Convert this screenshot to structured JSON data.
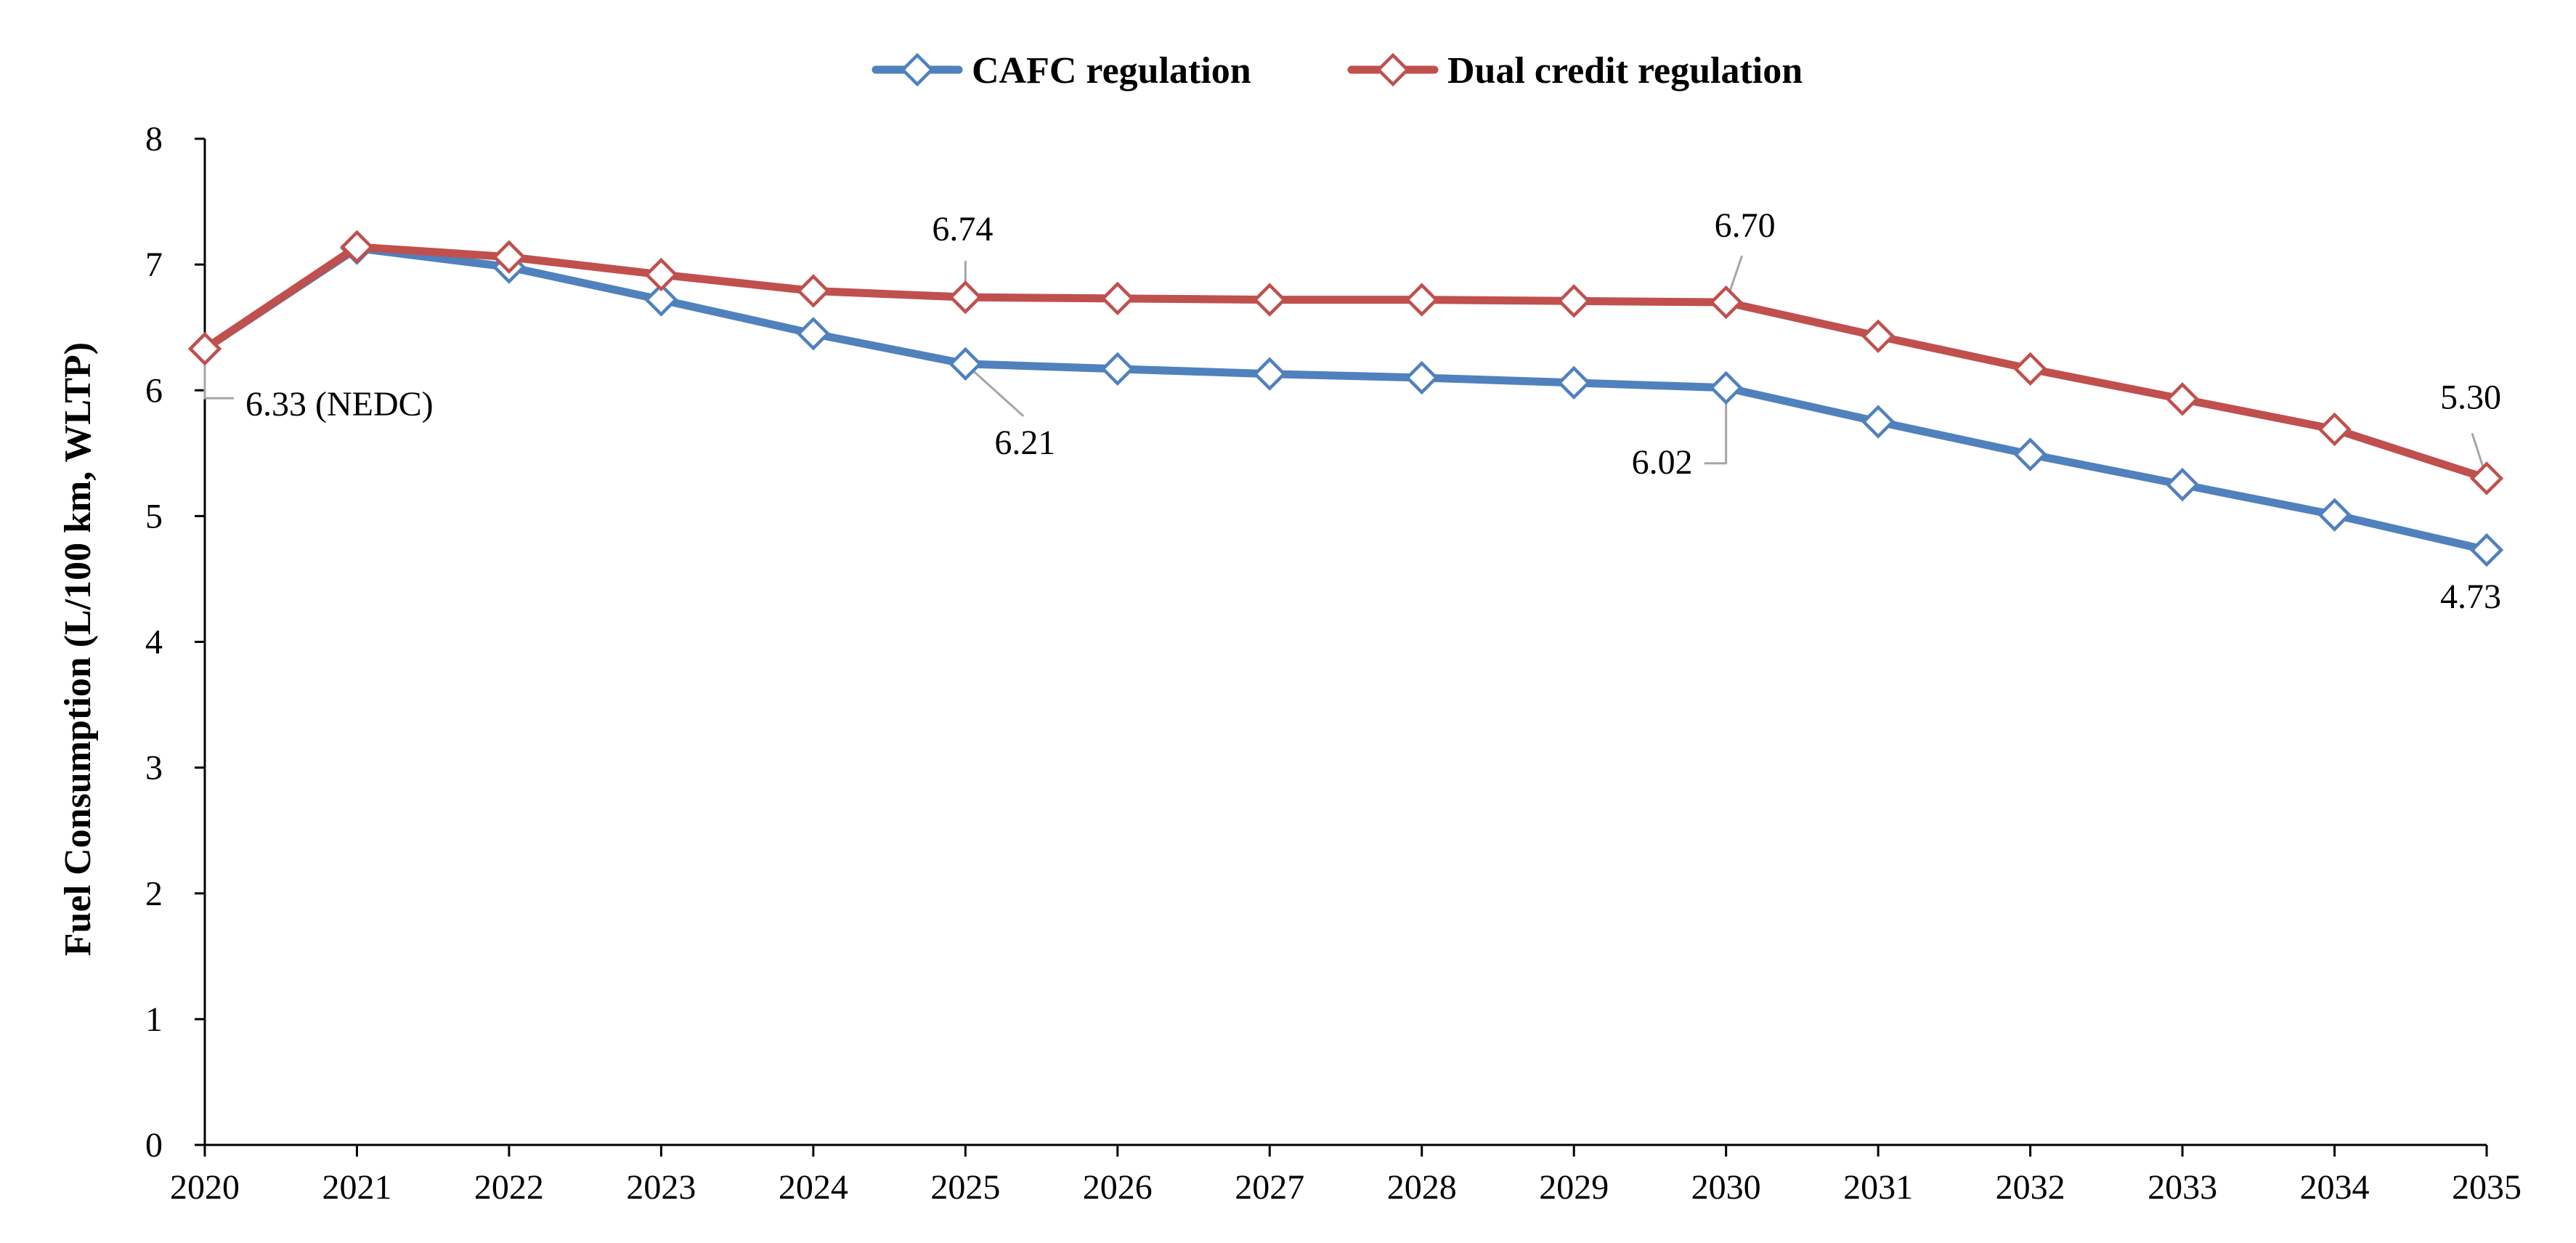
{
  "chart_data": {
    "type": "line",
    "title": "",
    "xlabel": "",
    "ylabel": "Fuel Consumption (L/100 km, WLTP)",
    "categories": [
      "2020",
      "2021",
      "2022",
      "2023",
      "2024",
      "2025",
      "2026",
      "2027",
      "2028",
      "2029",
      "2030",
      "2031",
      "2032",
      "2033",
      "2034",
      "2035"
    ],
    "ylim": [
      0,
      8
    ],
    "yticks": [
      0,
      1,
      2,
      3,
      4,
      5,
      6,
      7,
      8
    ],
    "grid": false,
    "legend_position": "top-center",
    "series": [
      {
        "name": "CAFC regulation",
        "color": "#4F81BD",
        "marker": "diamond-open",
        "values": [
          6.33,
          7.13,
          6.98,
          6.72,
          6.45,
          6.21,
          6.17,
          6.13,
          6.1,
          6.06,
          6.02,
          5.75,
          5.49,
          5.25,
          5.01,
          4.73
        ]
      },
      {
        "name": "Dual credit regulation",
        "color": "#C0504D",
        "marker": "diamond-open",
        "values": [
          6.33,
          7.14,
          7.06,
          6.92,
          6.79,
          6.74,
          6.73,
          6.72,
          6.72,
          6.71,
          6.7,
          6.43,
          6.17,
          5.93,
          5.69,
          5.3
        ]
      }
    ],
    "annotations": [
      {
        "text": "6.33 (NEDC)",
        "series": 1,
        "index": 0
      },
      {
        "text": "6.74",
        "series": 1,
        "index": 5
      },
      {
        "text": "6.21",
        "series": 0,
        "index": 5
      },
      {
        "text": "6.70",
        "series": 1,
        "index": 10
      },
      {
        "text": "6.02",
        "series": 0,
        "index": 10
      },
      {
        "text": "5.30",
        "series": 1,
        "index": 15
      },
      {
        "text": "4.73",
        "series": 0,
        "index": 15
      }
    ]
  }
}
